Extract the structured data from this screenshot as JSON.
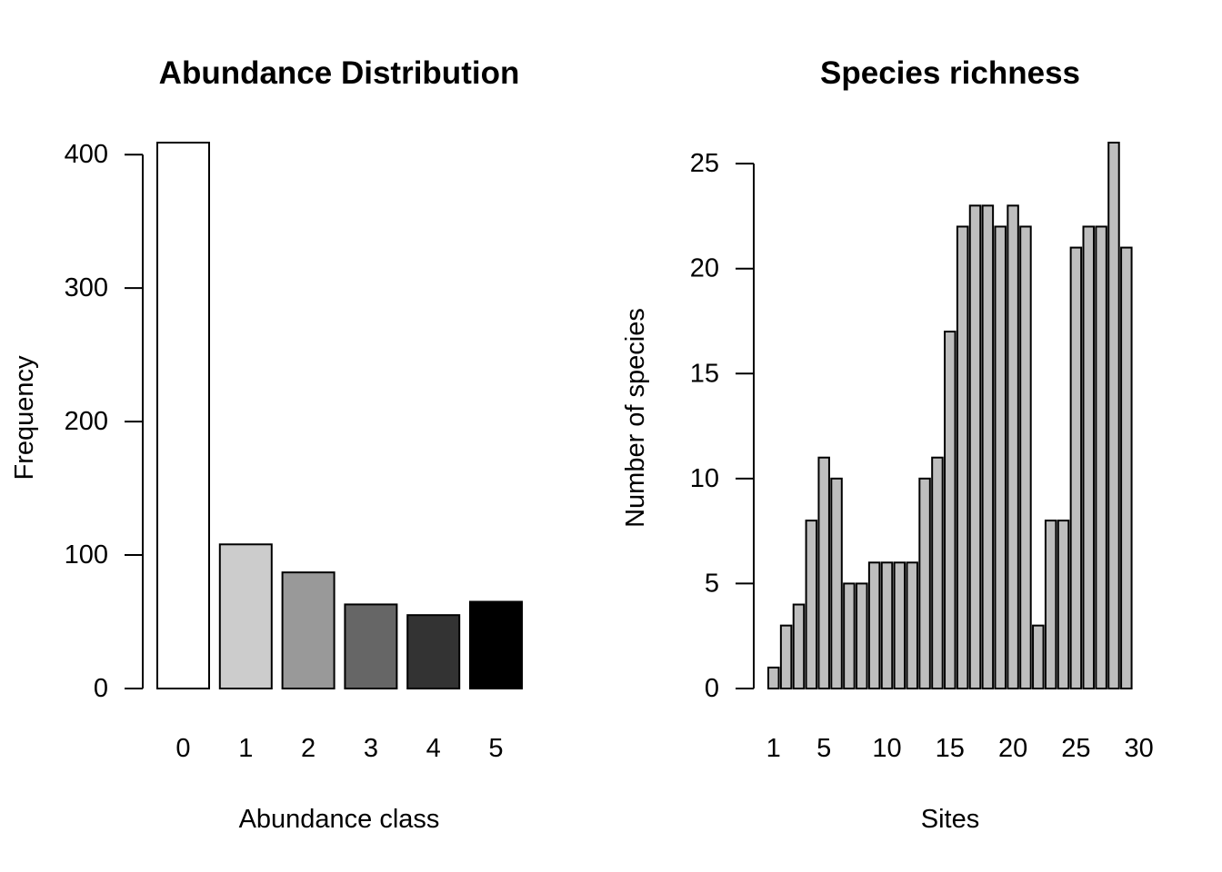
{
  "chart_data": [
    {
      "type": "bar",
      "title": "Abundance Distribution",
      "xlabel": "Abundance class",
      "ylabel": "Frequency",
      "categories": [
        "0",
        "1",
        "2",
        "3",
        "4",
        "5"
      ],
      "values": [
        409,
        108,
        87,
        63,
        55,
        65
      ],
      "colors": [
        "#ffffff",
        "#cccccc",
        "#999999",
        "#666666",
        "#333333",
        "#000000"
      ],
      "ylim": [
        0,
        409
      ],
      "yticks": [
        0,
        100,
        200,
        300,
        400
      ],
      "grid": false
    },
    {
      "type": "bar",
      "title": "Species richness",
      "xlabel": "Sites",
      "ylabel": "Number of species",
      "x": [
        1,
        2,
        3,
        4,
        5,
        6,
        7,
        8,
        9,
        10,
        11,
        12,
        13,
        14,
        15,
        16,
        17,
        18,
        19,
        20,
        21,
        22,
        23,
        24,
        25,
        26,
        27,
        28,
        29,
        30
      ],
      "values": [
        1,
        3,
        4,
        8,
        11,
        10,
        5,
        5,
        6,
        6,
        6,
        6,
        10,
        11,
        17,
        22,
        23,
        23,
        22,
        23,
        22,
        3,
        8,
        8,
        21,
        22,
        22,
        26,
        21,
        0
      ],
      "xtick_labels": [
        "1",
        "5",
        "10",
        "15",
        "20",
        "25",
        "30"
      ],
      "xtick_values": [
        1,
        5,
        10,
        15,
        20,
        25,
        30
      ],
      "yticks": [
        0,
        5,
        10,
        15,
        20,
        25
      ],
      "ylim": [
        0,
        26
      ],
      "bar_color": "#bebebe",
      "grid": false
    }
  ]
}
